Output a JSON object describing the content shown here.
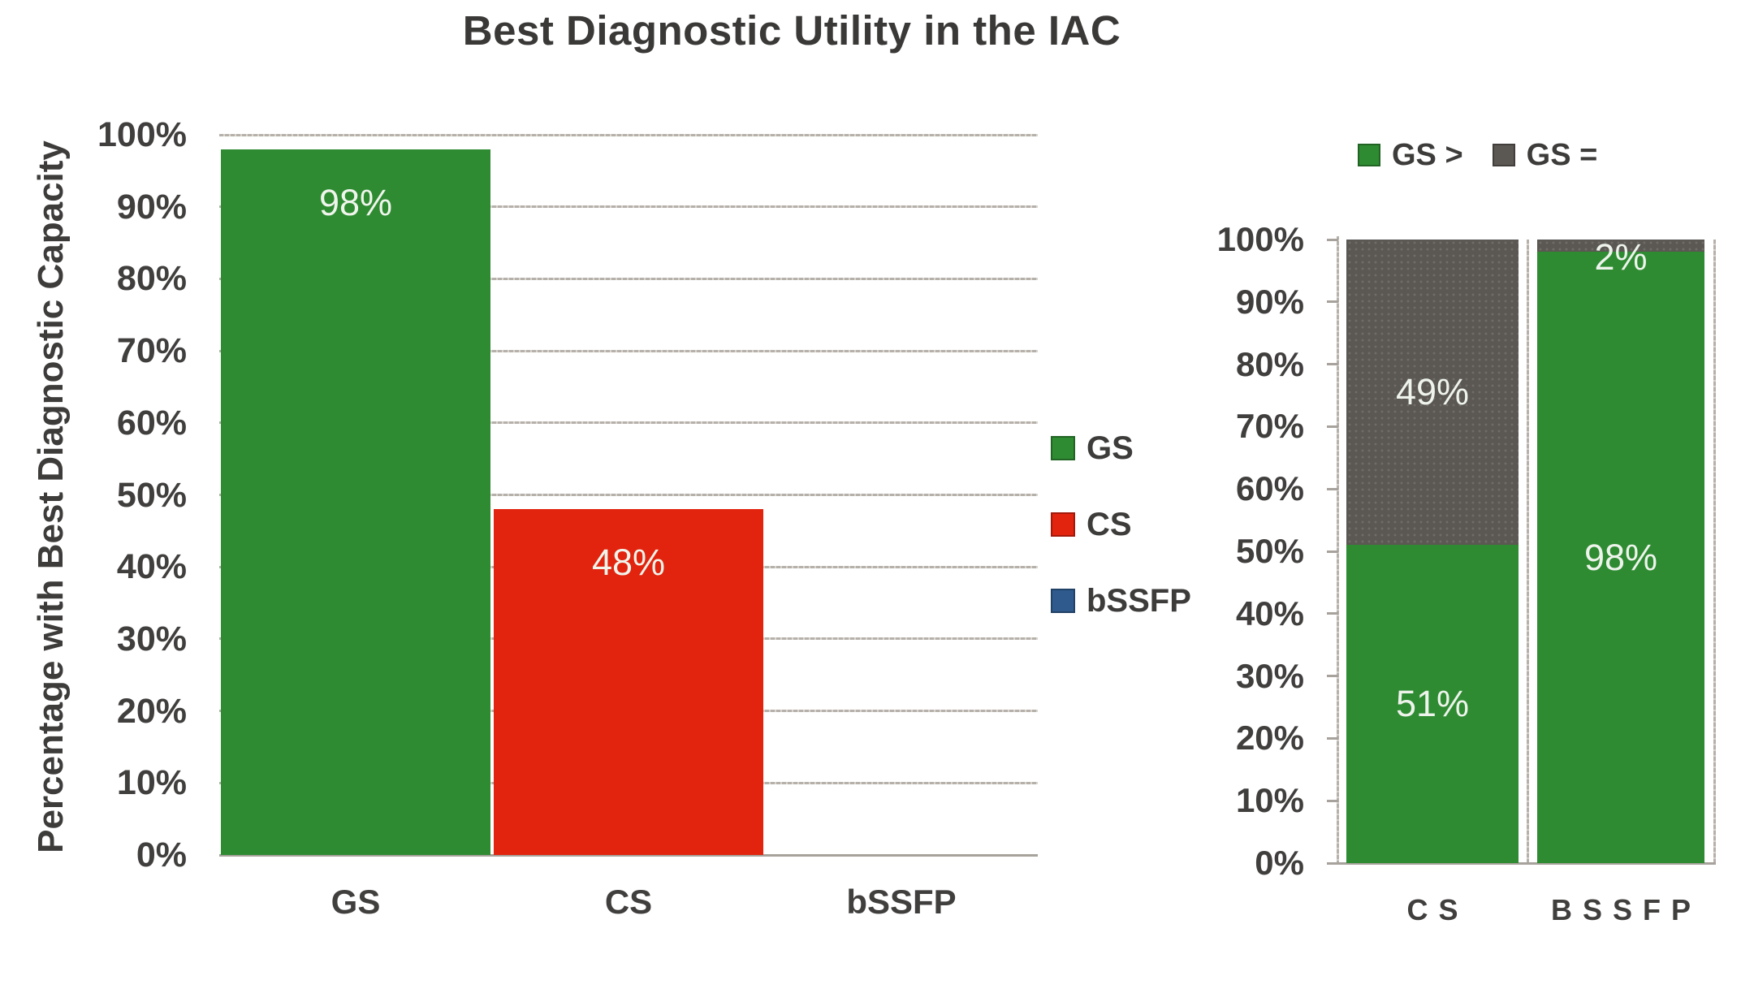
{
  "figure": {
    "title": "Best Diagnostic Utility in the IAC"
  },
  "chart_data": [
    {
      "id": "left-bar-chart",
      "type": "bar",
      "title": "Best Diagnostic Utility in the IAC",
      "xlabel": "",
      "ylabel": "Percentage with Best Diagnostic Capacity",
      "categories": [
        "GS",
        "CS",
        "bSSFP"
      ],
      "values": [
        98,
        48,
        0
      ],
      "data_labels": [
        "98%",
        "48%",
        ""
      ],
      "bar_colors": [
        "#2e8b32",
        "#e2230e",
        "#2e5a8d"
      ],
      "ylim": [
        0,
        100
      ],
      "ytick_step": 10,
      "ytick_labels": [
        "0%",
        "10%",
        "20%",
        "30%",
        "40%",
        "50%",
        "60%",
        "70%",
        "80%",
        "90%",
        "100%"
      ],
      "grid": true,
      "legend": {
        "position": "right",
        "items": [
          {
            "label": "GS",
            "color": "#2e8b32"
          },
          {
            "label": "CS",
            "color": "#e2230e"
          },
          {
            "label": "bSSFP",
            "color": "#2e5a8d"
          }
        ]
      }
    },
    {
      "id": "right-stacked-chart",
      "type": "bar",
      "subtype": "stacked",
      "title": "",
      "xlabel": "",
      "ylabel": "",
      "categories": [
        "CS",
        "BSSFP"
      ],
      "series": [
        {
          "name": "GS >",
          "color": "#2e8b32",
          "values": [
            51,
            98
          ],
          "labels": [
            "51%",
            "98%"
          ],
          "pattern": "solid"
        },
        {
          "name": "GS =",
          "color": "#5b5752",
          "values": [
            49,
            2
          ],
          "labels": [
            "49%",
            "2%"
          ],
          "pattern": "dots"
        }
      ],
      "ylim": [
        0,
        100
      ],
      "ytick_step": 10,
      "ytick_labels": [
        "0%",
        "10%",
        "20%",
        "30%",
        "40%",
        "50%",
        "60%",
        "70%",
        "80%",
        "90%",
        "100%"
      ],
      "grid": false,
      "legend": {
        "position": "top",
        "items": [
          {
            "label": "GS >",
            "color": "#2e8b32"
          },
          {
            "label": "GS =",
            "color": "#5b5752"
          }
        ]
      }
    }
  ]
}
